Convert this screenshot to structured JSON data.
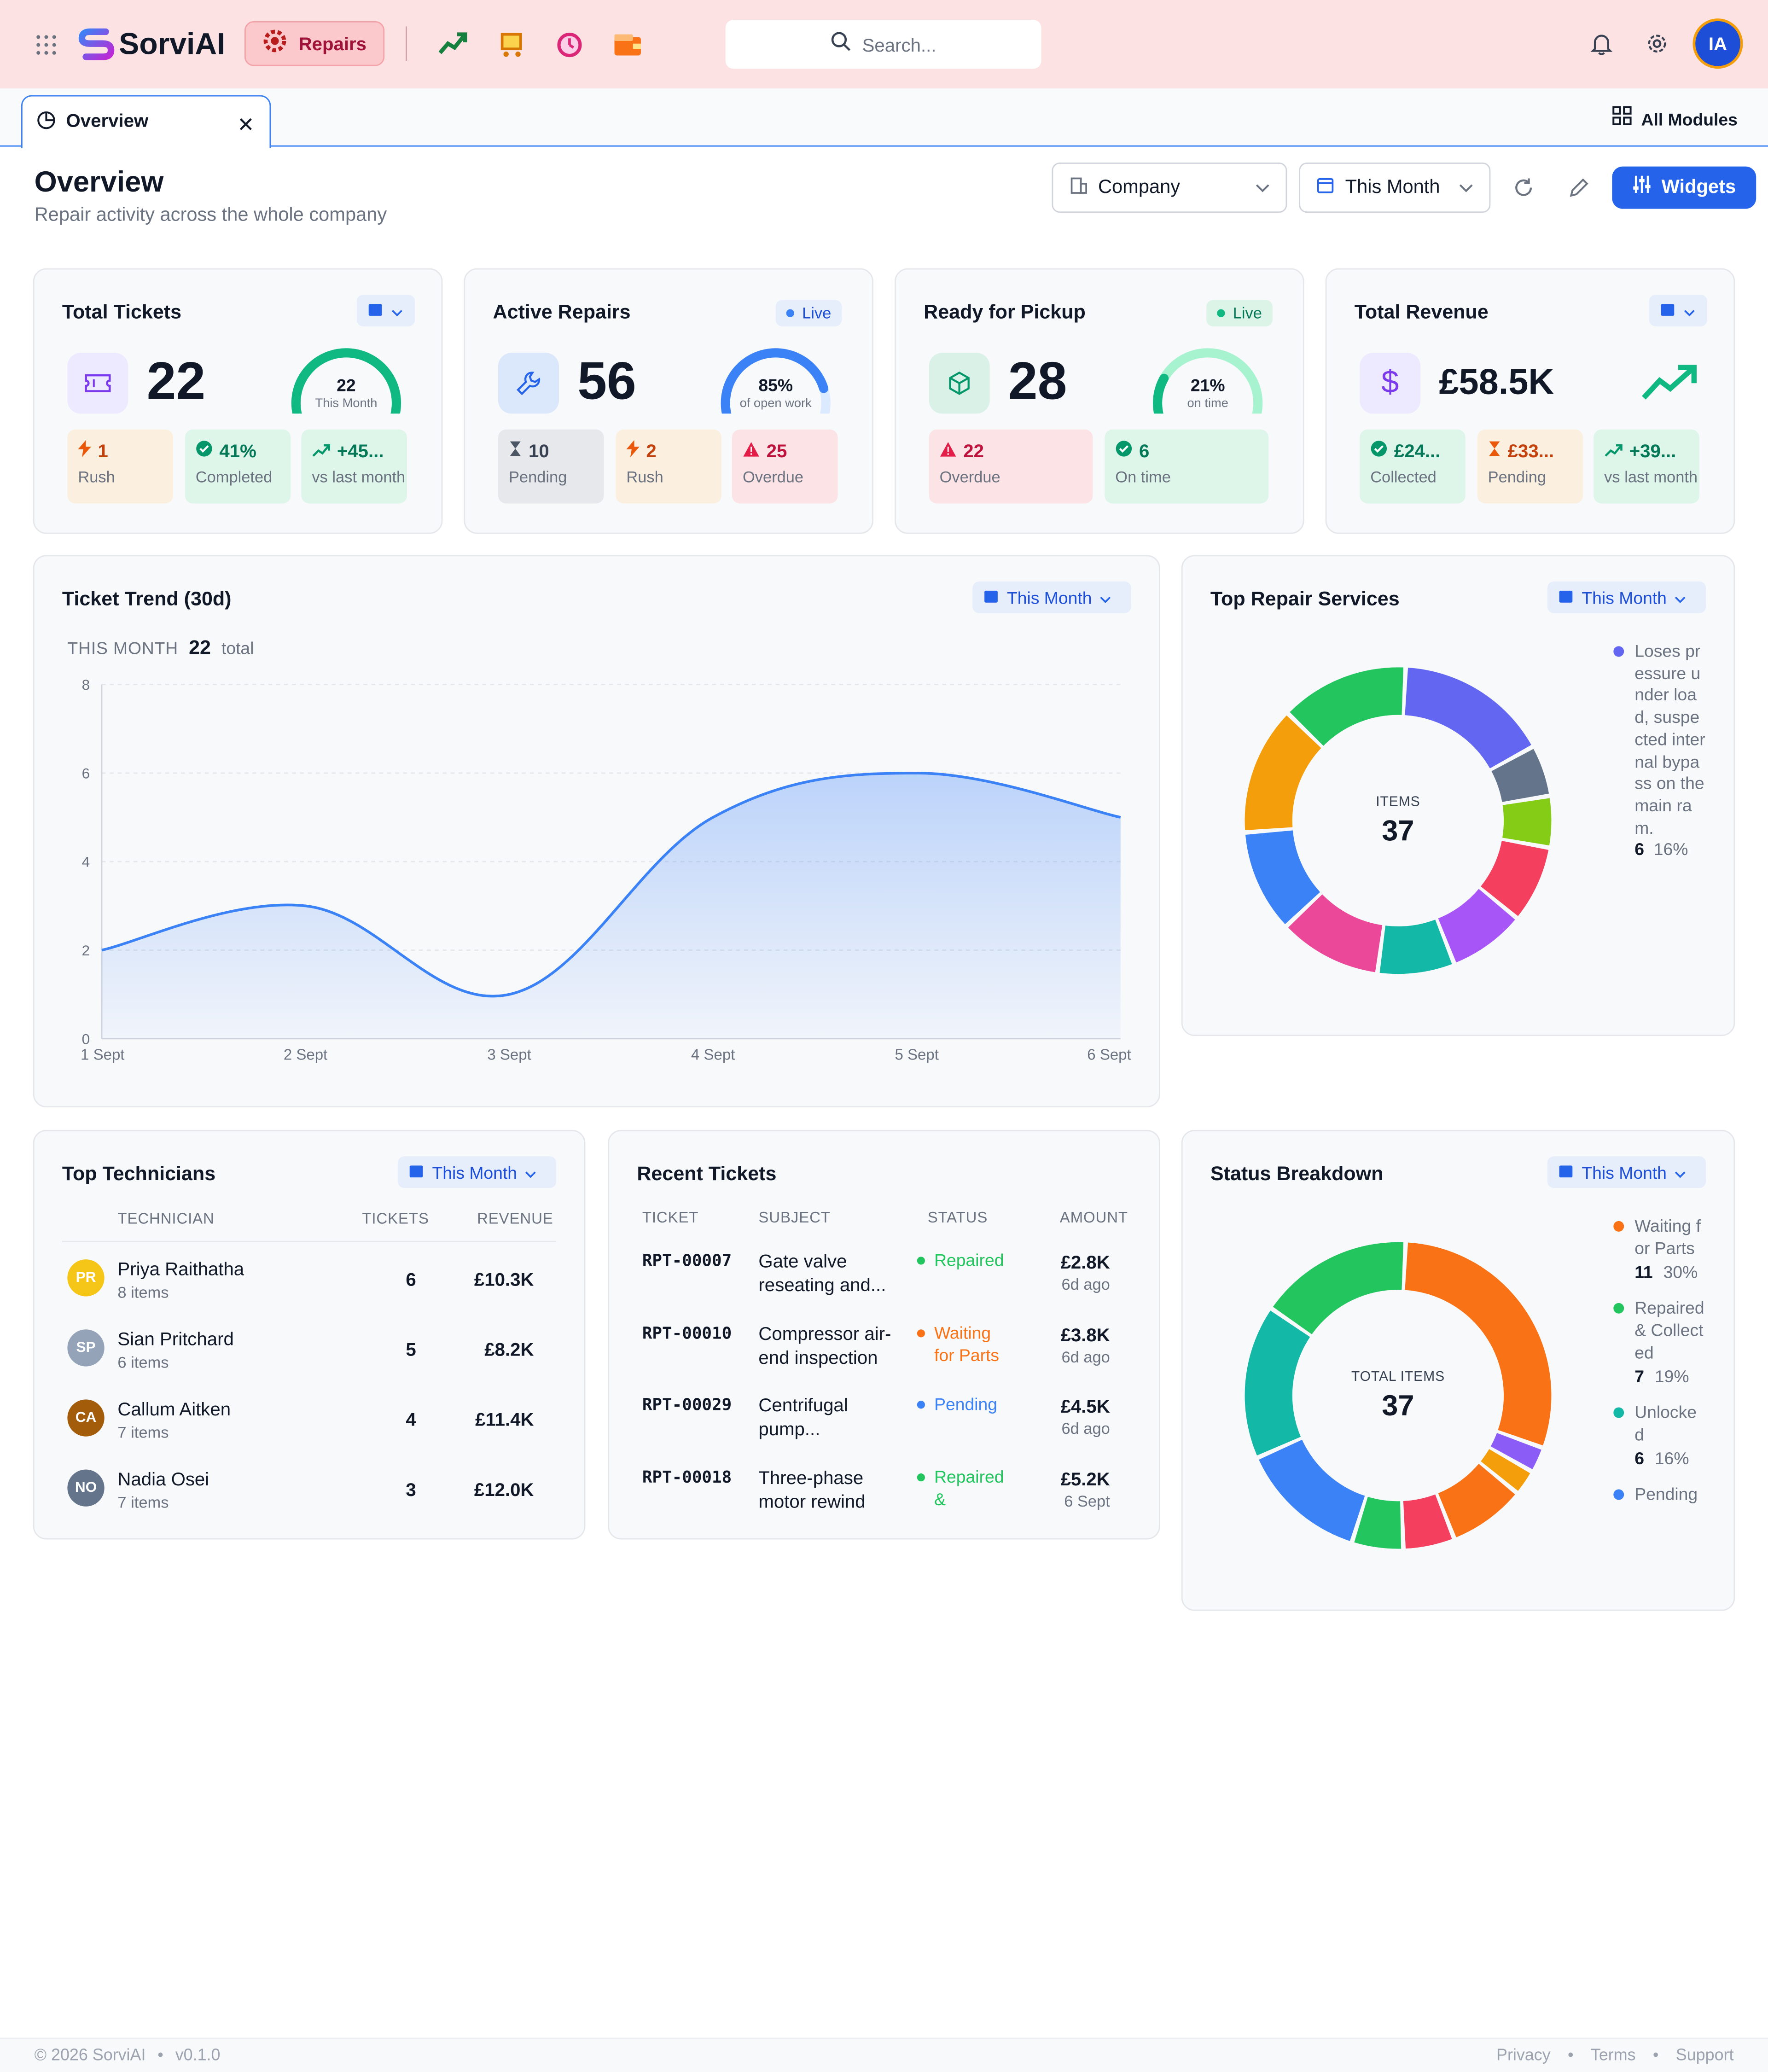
{
  "topbar": {
    "brand": "SorviAI",
    "active_module": "Repairs",
    "search_placeholder": "Search...",
    "avatar_initials": "IA"
  },
  "tabs": [
    {
      "label": "Overview"
    }
  ],
  "all_modules_label": "All Modules",
  "header": {
    "title": "Overview",
    "subtitle": "Repair activity across the whole company",
    "scope_select": "Company",
    "period_select": "This Month",
    "widgets_button": "Widgets"
  },
  "kpis": {
    "total_tickets": {
      "title": "Total Tickets",
      "value": "22",
      "gauge_value": "22",
      "gauge_label": "This Month",
      "gauge_fraction": 1.0,
      "tiles": [
        {
          "value": "1",
          "label": "Rush"
        },
        {
          "value": "41%",
          "label": "Completed"
        },
        {
          "value": "+45...",
          "label": "vs last month"
        }
      ]
    },
    "active_repairs": {
      "title": "Active Repairs",
      "badge": "Live",
      "value": "56",
      "gauge_value": "85%",
      "gauge_label": "of open work",
      "gauge_fraction": 0.85,
      "tiles": [
        {
          "value": "10",
          "label": "Pending"
        },
        {
          "value": "2",
          "label": "Rush"
        },
        {
          "value": "25",
          "label": "Overdue"
        }
      ]
    },
    "ready_for_pickup": {
      "title": "Ready for Pickup",
      "badge": "Live",
      "value": "28",
      "gauge_value": "21%",
      "gauge_label": "on time",
      "gauge_fraction": 0.21,
      "tiles": [
        {
          "value": "22",
          "label": "Overdue"
        },
        {
          "value": "6",
          "label": "On time"
        }
      ]
    },
    "total_revenue": {
      "title": "Total Revenue",
      "value": "£58.5K",
      "tiles": [
        {
          "value": "£24...",
          "label": "Collected"
        },
        {
          "value": "£33...",
          "label": "Pending"
        },
        {
          "value": "+39...",
          "label": "vs last month"
        }
      ]
    }
  },
  "trend": {
    "title": "Ticket Trend (30d)",
    "period": "This Month",
    "summary_label": "THIS MONTH",
    "summary_value": "22",
    "summary_unit": "total",
    "chart_data": {
      "type": "area",
      "x": [
        "1 Sept",
        "2 Sept",
        "3 Sept",
        "4 Sept",
        "5 Sept",
        "6 Sept"
      ],
      "values": [
        2,
        3,
        1,
        5,
        6,
        5
      ],
      "ylim": [
        0,
        8
      ],
      "yticks": [
        "0",
        "2",
        "4",
        "6",
        "8"
      ],
      "color": "#3b82f6",
      "grid": true
    }
  },
  "services": {
    "title": "Top Repair Services",
    "period": "This Month",
    "center_label": "ITEMS",
    "center_value": "37",
    "legend": [
      {
        "name": "Loses pressure under load, suspected internal bypass on the main ram.",
        "count": "6",
        "pct": "16%"
      }
    ],
    "chart_data": {
      "type": "pie",
      "segments": [
        {
          "value": 6,
          "color": "#6366f1"
        },
        {
          "value": 2,
          "color": "#64748b"
        },
        {
          "value": 2,
          "color": "#84cc16"
        },
        {
          "value": 3,
          "color": "#f43f5e"
        },
        {
          "value": 3,
          "color": "#a855f7"
        },
        {
          "value": 3,
          "color": "#14b8a6"
        },
        {
          "value": 4,
          "color": "#ec4899"
        },
        {
          "value": 4,
          "color": "#3b82f6"
        },
        {
          "value": 5,
          "color": "#f59e0b"
        },
        {
          "value": 5,
          "color": "#22c55e"
        }
      ]
    }
  },
  "technicians": {
    "title": "Top Technicians",
    "period": "This Month",
    "columns": [
      "TECHNICIAN",
      "TICKETS",
      "REVENUE"
    ],
    "rows": [
      {
        "initials": "PR",
        "name": "Priya Raithatha",
        "items": "8 items",
        "tickets": "6",
        "revenue": "£10.3K",
        "color": "#f5c518"
      },
      {
        "initials": "SP",
        "name": "Sian Pritchard",
        "items": "6 items",
        "tickets": "5",
        "revenue": "£8.2K",
        "color": "#94a3b8"
      },
      {
        "initials": "CA",
        "name": "Callum Aitken",
        "items": "7 items",
        "tickets": "4",
        "revenue": "£11.4K",
        "color": "#a35d0a"
      },
      {
        "initials": "NO",
        "name": "Nadia Osei",
        "items": "7 items",
        "tickets": "3",
        "revenue": "£12.0K",
        "color": "#64748b"
      }
    ]
  },
  "recent": {
    "title": "Recent Tickets",
    "columns": [
      "TICKET",
      "SUBJECT",
      "STATUS",
      "AMOUNT"
    ],
    "rows": [
      {
        "id": "RPT-00007",
        "subject1": "Gate valve",
        "subject2": "reseating and...",
        "status1": "Repaired",
        "status2": "",
        "status_color": "#22c55e",
        "amount": "£2.8K",
        "when": "6d ago"
      },
      {
        "id": "RPT-00010",
        "subject1": "Compressor air-",
        "subject2": "end inspection",
        "status1": "Waiting",
        "status2": "for Parts",
        "status_color": "#f97316",
        "amount": "£3.8K",
        "when": "6d ago"
      },
      {
        "id": "RPT-00029",
        "subject1": "Centrifugal",
        "subject2": "pump...",
        "status1": "Pending",
        "status2": "",
        "status_color": "#3b82f6",
        "amount": "£4.5K",
        "when": "6d ago"
      },
      {
        "id": "RPT-00018",
        "subject1": "Three-phase",
        "subject2": "motor rewind",
        "status1": "Repaired",
        "status2": "&",
        "status_color": "#22c55e",
        "amount": "£5.2K",
        "when": "6 Sept"
      }
    ]
  },
  "status": {
    "title": "Status Breakdown",
    "period": "This Month",
    "center_label": "TOTAL ITEMS",
    "center_value": "37",
    "legend": [
      {
        "name": "Waiting for Parts",
        "count": "11",
        "pct": "30%",
        "color": "#f97316"
      },
      {
        "name": "Repaired & Collected",
        "count": "7",
        "pct": "19%",
        "color": "#22c55e"
      },
      {
        "name": "Unlocked",
        "count": "6",
        "pct": "16%",
        "color": "#14b8a6"
      },
      {
        "name": "Pending",
        "count": "",
        "pct": "",
        "color": "#3b82f6"
      }
    ],
    "chart_data": {
      "type": "pie",
      "segments": [
        {
          "value": 11,
          "color": "#f97316"
        },
        {
          "value": 1,
          "color": "#8b5cf6"
        },
        {
          "value": 1,
          "color": "#f59e0b"
        },
        {
          "value": 3,
          "color": "#f97316"
        },
        {
          "value": 2,
          "color": "#f43f5e"
        },
        {
          "value": 2,
          "color": "#22c55e"
        },
        {
          "value": 5,
          "color": "#3b82f6"
        },
        {
          "value": 6,
          "color": "#14b8a6"
        },
        {
          "value": 6,
          "color": "#22c55e"
        }
      ]
    }
  },
  "footer": {
    "copyright": "© 2026 SorviAI",
    "version": "v0.1.0",
    "links": [
      "Privacy",
      "Terms",
      "Support"
    ]
  }
}
